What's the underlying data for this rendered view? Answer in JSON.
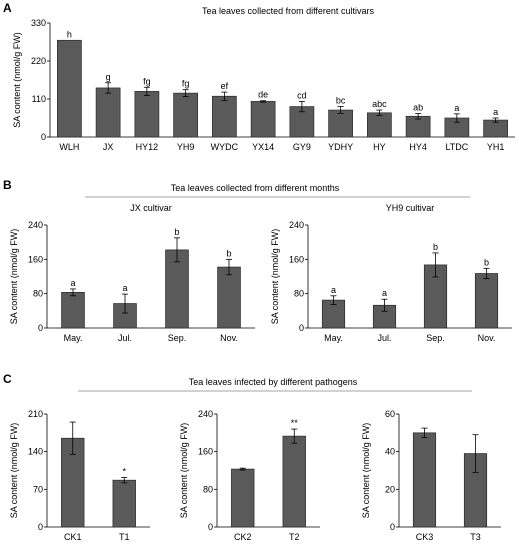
{
  "panels": [
    {
      "letter": "A",
      "title": "Tea leaves collected from different cultivars"
    },
    {
      "letter": "B",
      "title": "Tea leaves collected from different months"
    },
    {
      "letter": "C",
      "title": "Tea leaves infected by different pathogens"
    }
  ],
  "chart_data": [
    {
      "type": "bar",
      "panel": "A",
      "subtitle": "",
      "ylabel": "SA content (nmol/g FW)",
      "ylim": [
        0,
        330
      ],
      "yticks": [
        0,
        110,
        220,
        330
      ],
      "categories": [
        "WLH",
        "JX",
        "HY12",
        "YH9",
        "WYDC",
        "YX14",
        "GY9",
        "YDHY",
        "HY",
        "HY4",
        "LTDC",
        "YH1"
      ],
      "values": [
        280,
        142,
        132,
        127,
        118,
        103,
        88,
        78,
        70,
        60,
        55,
        49
      ],
      "errors": [
        0,
        15,
        12,
        10,
        12,
        2,
        15,
        10,
        8,
        8,
        12,
        6
      ],
      "labels": [
        "h",
        "g",
        "fg",
        "fg",
        "ef",
        "de",
        "cd",
        "bc",
        "abc",
        "ab",
        "a",
        "a"
      ]
    },
    {
      "type": "bar",
      "panel": "B",
      "subtitle": "JX cultivar",
      "ylabel": "SA content (nmol/g FW)",
      "ylim": [
        0,
        240
      ],
      "yticks": [
        0,
        80,
        160,
        240
      ],
      "categories": [
        "May.",
        "Jul.",
        "Sep.",
        "Nov."
      ],
      "values": [
        83,
        57,
        182,
        142
      ],
      "errors": [
        8,
        22,
        28,
        18
      ],
      "labels": [
        "a",
        "a",
        "b",
        "b"
      ]
    },
    {
      "type": "bar",
      "panel": "B",
      "subtitle": "YH9 cultivar",
      "ylabel": "SA content (nmol/g FW)",
      "ylim": [
        0,
        240
      ],
      "yticks": [
        0,
        80,
        160,
        240
      ],
      "categories": [
        "May.",
        "Jul.",
        "Sep.",
        "Nov."
      ],
      "values": [
        65,
        53,
        147,
        127
      ],
      "errors": [
        10,
        14,
        28,
        12
      ],
      "labels": [
        "a",
        "a",
        "b",
        "b"
      ]
    },
    {
      "type": "bar",
      "panel": "C",
      "subtitle": "",
      "ylabel": "SA content (nmol/g FW)",
      "ylim": [
        0,
        210
      ],
      "yticks": [
        0,
        70,
        140,
        210
      ],
      "categories": [
        "CK1",
        "T1"
      ],
      "values": [
        165,
        87
      ],
      "errors": [
        30,
        5
      ],
      "labels": [
        "",
        "*"
      ]
    },
    {
      "type": "bar",
      "panel": "C",
      "subtitle": "",
      "ylabel": "SA content (nmol/g FW)",
      "ylim": [
        0,
        240
      ],
      "yticks": [
        0,
        80,
        160,
        240
      ],
      "categories": [
        "CK2",
        "T2"
      ],
      "values": [
        123,
        193
      ],
      "errors": [
        2,
        15
      ],
      "labels": [
        "",
        "**"
      ]
    },
    {
      "type": "bar",
      "panel": "C",
      "subtitle": "",
      "ylabel": "SA content (nmol/g FW)",
      "ylim": [
        0,
        60
      ],
      "yticks": [
        0,
        20,
        40,
        60
      ],
      "categories": [
        "CK3",
        "T3"
      ],
      "values": [
        50,
        39
      ],
      "errors": [
        2.5,
        10
      ],
      "labels": [
        "",
        ""
      ]
    }
  ]
}
